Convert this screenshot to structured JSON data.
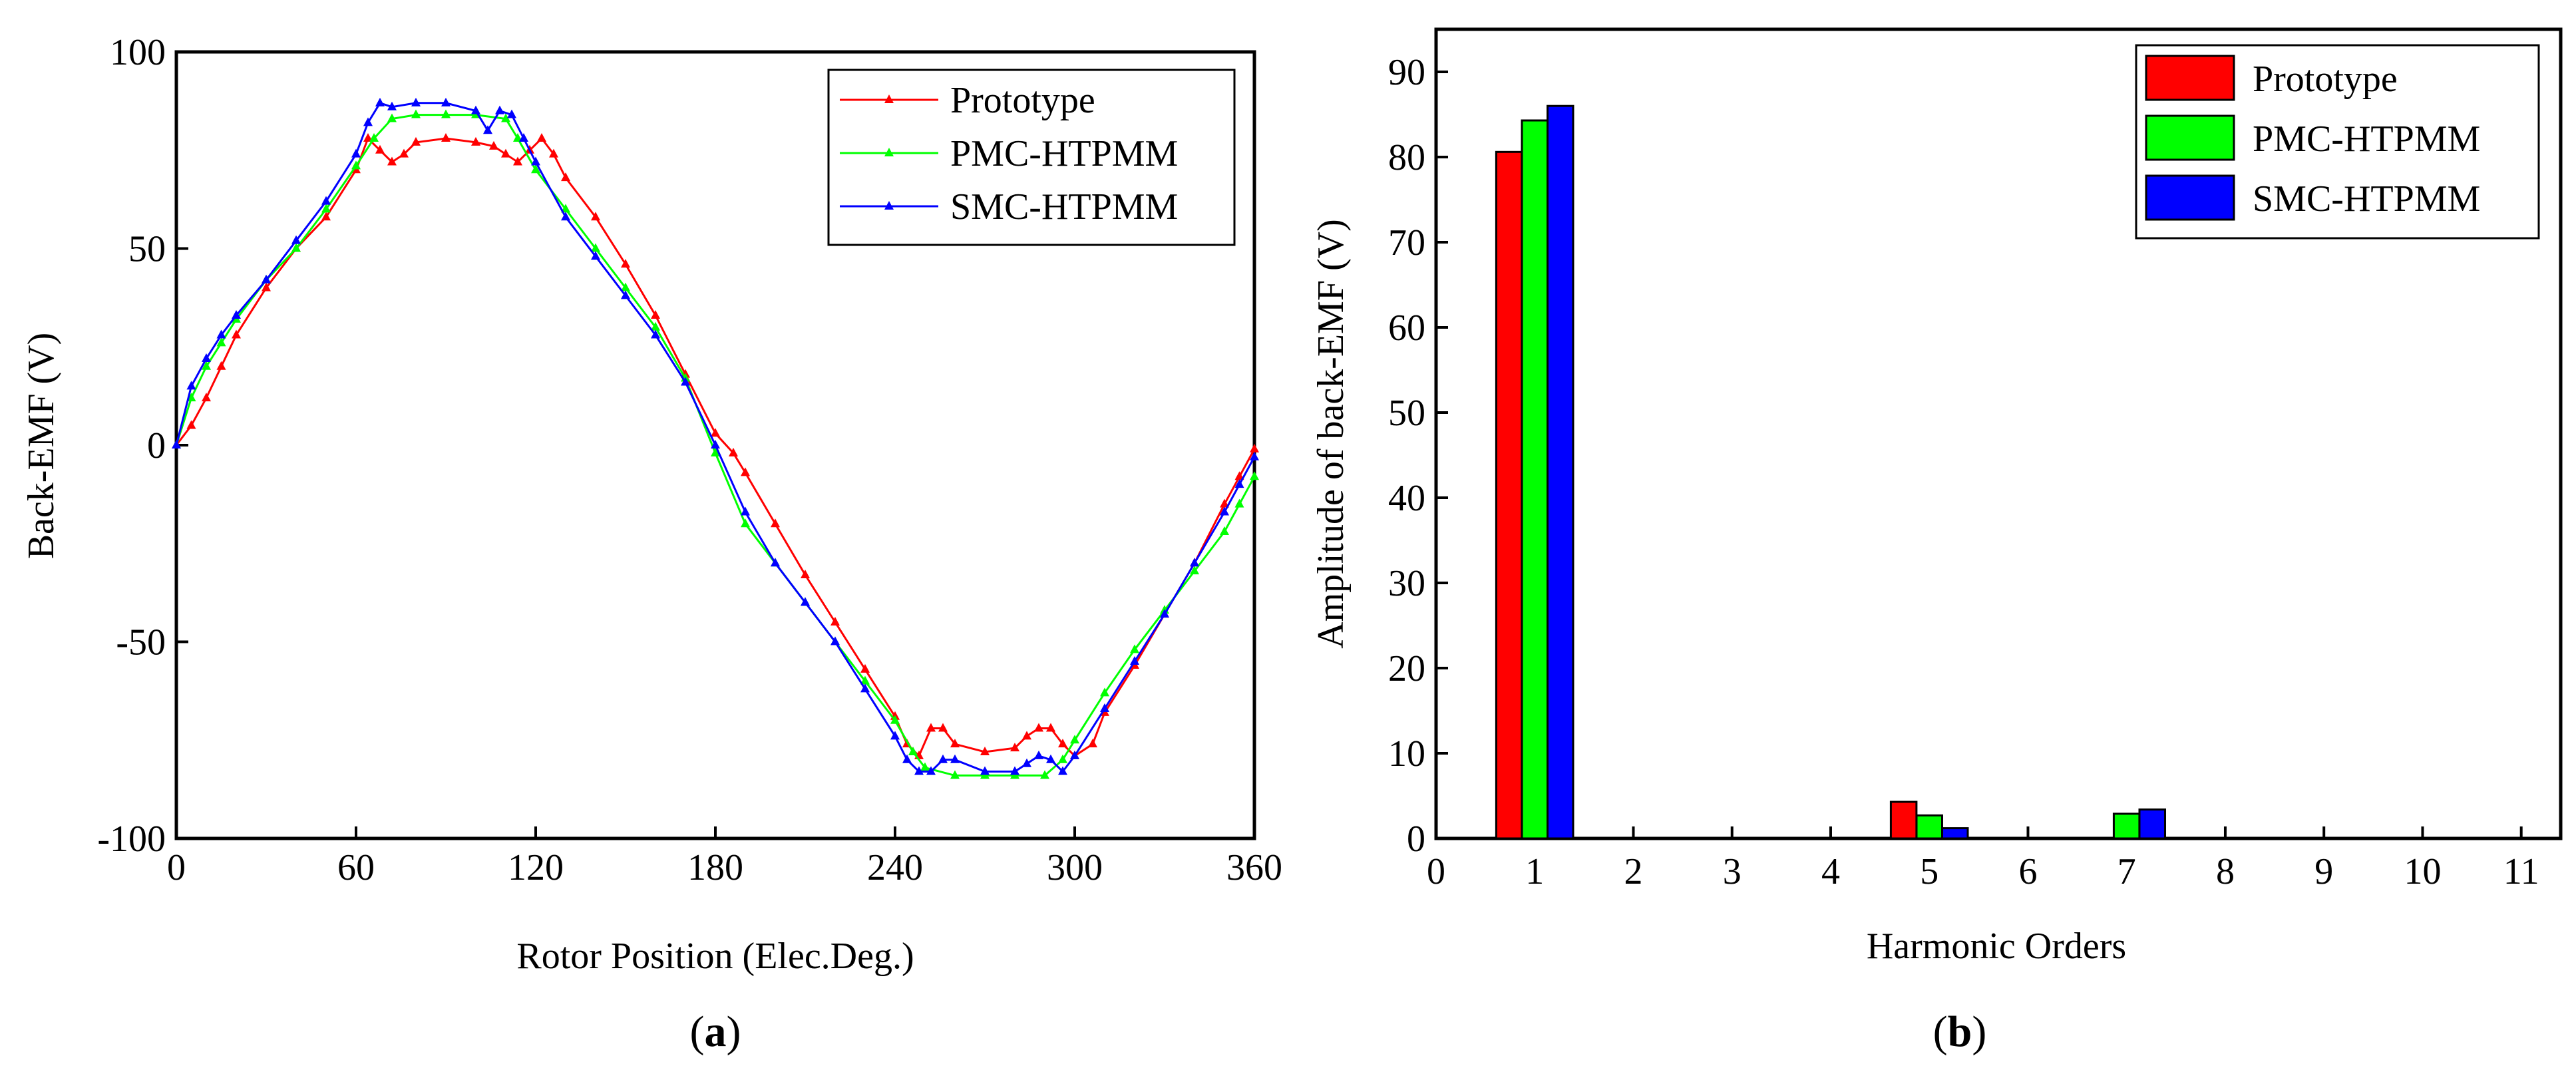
{
  "chart_data": [
    {
      "type": "line",
      "panel_label": "a",
      "title": "",
      "xlabel": "Rotor Position (Elec.Deg.)",
      "ylabel": "Back-EMF (V)",
      "xlim": [
        0,
        360
      ],
      "ylim": [
        -100,
        100
      ],
      "xticks": [
        "0",
        "60",
        "120",
        "180",
        "240",
        "300",
        "360"
      ],
      "yticks": [
        "100",
        "50",
        "0",
        "-50",
        "-100"
      ],
      "legend_position": "top-right",
      "series": [
        {
          "name": "Prototype",
          "color": "#ff0000",
          "x": [
            0,
            5,
            10,
            15,
            20,
            30,
            40,
            50,
            60,
            64,
            68,
            72,
            76,
            80,
            90,
            100,
            106,
            110,
            114,
            118,
            122,
            126,
            130,
            140,
            150,
            160,
            170,
            180,
            186,
            190,
            200,
            210,
            220,
            230,
            240,
            244,
            248,
            252,
            256,
            260,
            270,
            280,
            284,
            288,
            292,
            296,
            300,
            306,
            310,
            320,
            330,
            340,
            350,
            355,
            360
          ],
          "y": [
            0,
            5,
            12,
            20,
            28,
            40,
            50,
            58,
            70,
            78,
            75,
            72,
            74,
            77,
            78,
            77,
            76,
            74,
            72,
            75,
            78,
            74,
            68,
            58,
            46,
            33,
            18,
            3,
            -2,
            -7,
            -20,
            -33,
            -45,
            -57,
            -69,
            -76,
            -79,
            -72,
            -72,
            -76,
            -78,
            -77,
            -74,
            -72,
            -72,
            -76,
            -79,
            -76,
            -68,
            -56,
            -43,
            -30,
            -15,
            -8,
            -1
          ]
        },
        {
          "name": "PMC-HTPMM",
          "color": "#00ff00",
          "x": [
            0,
            5,
            10,
            15,
            20,
            30,
            40,
            50,
            60,
            66,
            72,
            80,
            90,
            100,
            110,
            114,
            120,
            130,
            140,
            150,
            160,
            170,
            180,
            190,
            200,
            210,
            220,
            230,
            240,
            246,
            250,
            260,
            270,
            280,
            290,
            296,
            300,
            310,
            320,
            330,
            340,
            350,
            355,
            360
          ],
          "y": [
            0,
            12,
            20,
            26,
            32,
            42,
            50,
            60,
            71,
            78,
            83,
            84,
            84,
            84,
            83,
            78,
            70,
            60,
            50,
            40,
            30,
            17,
            -2,
            -20,
            -30,
            -40,
            -50,
            -60,
            -70,
            -78,
            -82,
            -84,
            -84,
            -84,
            -84,
            -80,
            -75,
            -63,
            -52,
            -42,
            -32,
            -22,
            -15,
            -8
          ]
        },
        {
          "name": "SMC-HTPMM",
          "color": "#0000ff",
          "x": [
            0,
            5,
            10,
            15,
            20,
            30,
            40,
            50,
            60,
            64,
            68,
            72,
            80,
            90,
            100,
            104,
            108,
            112,
            116,
            120,
            130,
            140,
            150,
            160,
            170,
            180,
            190,
            200,
            210,
            220,
            230,
            240,
            244,
            248,
            252,
            256,
            260,
            270,
            280,
            284,
            288,
            292,
            296,
            300,
            310,
            320,
            330,
            340,
            350,
            355,
            360
          ],
          "y": [
            0,
            15,
            22,
            28,
            33,
            42,
            52,
            62,
            74,
            82,
            87,
            86,
            87,
            87,
            85,
            80,
            85,
            84,
            78,
            72,
            58,
            48,
            38,
            28,
            16,
            0,
            -17,
            -30,
            -40,
            -50,
            -62,
            -74,
            -80,
            -83,
            -83,
            -80,
            -80,
            -83,
            -83,
            -81,
            -79,
            -80,
            -83,
            -79,
            -67,
            -55,
            -43,
            -30,
            -17,
            -10,
            -3
          ]
        }
      ]
    },
    {
      "type": "bar",
      "panel_label": "b",
      "title": "",
      "xlabel": "Harmonic Orders",
      "ylabel": "Amplitude of back-EMF (V)",
      "xlim": [
        0,
        11.4
      ],
      "ylim": [
        0,
        95
      ],
      "xticks": [
        "0",
        "1",
        "2",
        "3",
        "4",
        "5",
        "6",
        "7",
        "8",
        "9",
        "10",
        "11"
      ],
      "yticks": [
        "0",
        "10",
        "20",
        "30",
        "40",
        "50",
        "60",
        "70",
        "80",
        "90"
      ],
      "legend_position": "top-right",
      "categories": [
        "1",
        "5",
        "7"
      ],
      "series": [
        {
          "name": "Prototype",
          "color": "#ff0000",
          "values": [
            80.6,
            4.3,
            0
          ]
        },
        {
          "name": "PMC-HTPMM",
          "color": "#00ff00",
          "values": [
            84.3,
            2.7,
            2.9
          ]
        },
        {
          "name": "SMC-HTPMM",
          "color": "#0000ff",
          "values": [
            86.0,
            1.2,
            3.4
          ]
        }
      ]
    }
  ]
}
